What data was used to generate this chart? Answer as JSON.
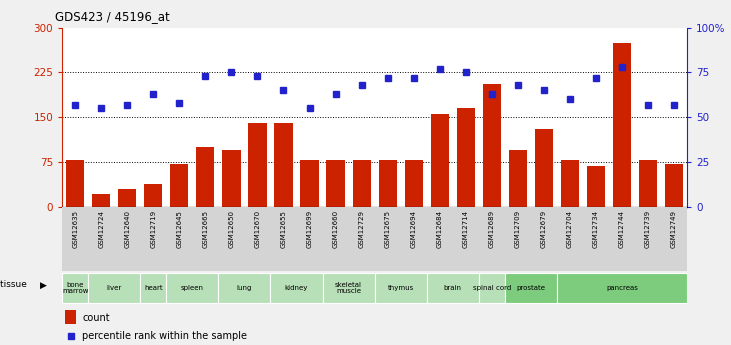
{
  "title": "GDS423 / 45196_at",
  "gsm_labels": [
    "GSM12635",
    "GSM12724",
    "GSM12640",
    "GSM12719",
    "GSM12645",
    "GSM12665",
    "GSM12650",
    "GSM12670",
    "GSM12655",
    "GSM12699",
    "GSM12660",
    "GSM12729",
    "GSM12675",
    "GSM12694",
    "GSM12684",
    "GSM12714",
    "GSM12689",
    "GSM12709",
    "GSM12679",
    "GSM12704",
    "GSM12734",
    "GSM12744",
    "GSM12739",
    "GSM12749"
  ],
  "counts": [
    78,
    22,
    30,
    38,
    72,
    100,
    95,
    140,
    140,
    78,
    78,
    78,
    78,
    78,
    155,
    165,
    205,
    95,
    130,
    78,
    68,
    275,
    78,
    72
  ],
  "percentiles": [
    57,
    55,
    57,
    63,
    58,
    73,
    75,
    73,
    65,
    55,
    63,
    68,
    72,
    72,
    77,
    75,
    63,
    68,
    65,
    60,
    72,
    78,
    57,
    57
  ],
  "tissues": [
    {
      "name": "bone\nmarrow",
      "start": 0,
      "end": 1,
      "color": "#b8e0b8"
    },
    {
      "name": "liver",
      "start": 1,
      "end": 3,
      "color": "#b8e0b8"
    },
    {
      "name": "heart",
      "start": 3,
      "end": 4,
      "color": "#b8e0b8"
    },
    {
      "name": "spleen",
      "start": 4,
      "end": 6,
      "color": "#b8e0b8"
    },
    {
      "name": "lung",
      "start": 6,
      "end": 8,
      "color": "#b8e0b8"
    },
    {
      "name": "kidney",
      "start": 8,
      "end": 10,
      "color": "#b8e0b8"
    },
    {
      "name": "skeletal\nmuscle",
      "start": 10,
      "end": 12,
      "color": "#b8e0b8"
    },
    {
      "name": "thymus",
      "start": 12,
      "end": 14,
      "color": "#b8e0b8"
    },
    {
      "name": "brain",
      "start": 14,
      "end": 16,
      "color": "#b8e0b8"
    },
    {
      "name": "spinal cord",
      "start": 16,
      "end": 17,
      "color": "#b8e0b8"
    },
    {
      "name": "prostate",
      "start": 17,
      "end": 19,
      "color": "#7dcc7d"
    },
    {
      "name": "pancreas",
      "start": 19,
      "end": 24,
      "color": "#7dcc7d"
    }
  ],
  "bar_color": "#cc2200",
  "dot_color": "#2222cc",
  "ylim_left": [
    0,
    300
  ],
  "ylim_right": [
    0,
    100
  ],
  "yticks_left": [
    0,
    75,
    150,
    225,
    300
  ],
  "yticks_right": [
    0,
    25,
    50,
    75,
    100
  ],
  "gsm_bg_color": "#d4d4d4",
  "fig_bg_color": "#f0f0f0"
}
